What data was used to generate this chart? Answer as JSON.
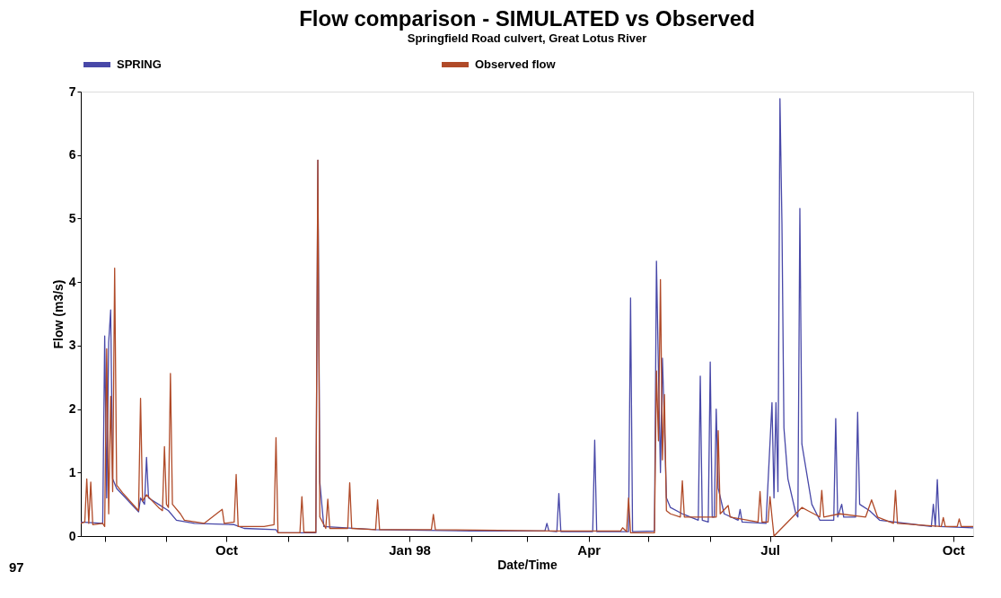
{
  "chart_data": {
    "type": "line",
    "title": "Flow comparison - SIMULATED vs Observed",
    "subtitle": "Springfield Road culvert, Great Lotus River",
    "xlabel": "Date/Time",
    "ylabel": "Flow (m3/s)",
    "legend": "top",
    "grid": false,
    "marker": "none",
    "line_style": "solid",
    "annotations": [
      "97"
    ],
    "xlim": [
      "1997-07-20",
      "1998-10-11"
    ],
    "xticks": [
      {
        "value": "1997-08-01",
        "label": null
      },
      {
        "value": "1997-09-01",
        "label": null
      },
      {
        "value": "1997-10-01",
        "label": "Oct"
      },
      {
        "value": "1997-11-01",
        "label": null
      },
      {
        "value": "1997-12-01",
        "label": null
      },
      {
        "value": "1998-01-01",
        "label": "Jan 98"
      },
      {
        "value": "1998-02-01",
        "label": null
      },
      {
        "value": "1998-03-01",
        "label": null
      },
      {
        "value": "1998-04-01",
        "label": "Apr"
      },
      {
        "value": "1998-05-01",
        "label": null
      },
      {
        "value": "1998-06-01",
        "label": null
      },
      {
        "value": "1998-07-01",
        "label": "Jul"
      },
      {
        "value": "1998-08-01",
        "label": null
      },
      {
        "value": "1998-09-01",
        "label": null
      },
      {
        "value": "1998-10-01",
        "label": "Oct"
      }
    ],
    "ylim": [
      0,
      7
    ],
    "yticks": [
      0,
      1,
      2,
      3,
      4,
      5,
      6,
      7
    ],
    "series": [
      {
        "name": "SPRING",
        "color": "#4848a8",
        "x": [
          "1997-07-20",
          "1997-07-31",
          "1997-08-01",
          "1997-08-02",
          "1997-08-03",
          "1997-08-04",
          "1997-08-05",
          "1997-08-07",
          "1997-08-10",
          "1997-08-18",
          "1997-08-19",
          "1997-08-21",
          "1997-08-22",
          "1997-08-23",
          "1997-08-28",
          "1997-09-02",
          "1997-09-06",
          "1997-09-15",
          "1997-10-05",
          "1997-10-10",
          "1997-10-26",
          "1997-10-27",
          "1997-11-15",
          "1997-11-16",
          "1997-11-17",
          "1997-11-19",
          "1997-12-15",
          "1998-02-01",
          "1998-03-10",
          "1998-03-11",
          "1998-03-12",
          "1998-03-16",
          "1998-03-17",
          "1998-03-18",
          "1998-04-03",
          "1998-04-04",
          "1998-04-05",
          "1998-04-21",
          "1998-04-22",
          "1998-04-23",
          "1998-05-04",
          "1998-05-05",
          "1998-05-06",
          "1998-05-07",
          "1998-05-08",
          "1998-05-09",
          "1998-05-10",
          "1998-05-12",
          "1998-05-18",
          "1998-05-26",
          "1998-05-27",
          "1998-05-28",
          "1998-05-31",
          "1998-06-01",
          "1998-06-02",
          "1998-06-03",
          "1998-06-04",
          "1998-06-05",
          "1998-06-08",
          "1998-06-15",
          "1998-06-16",
          "1998-06-17",
          "1998-06-29",
          "1998-07-02",
          "1998-07-03",
          "1998-07-04",
          "1998-07-05",
          "1998-07-06",
          "1998-07-07",
          "1998-07-08",
          "1998-07-10",
          "1998-07-14",
          "1998-07-15",
          "1998-07-16",
          "1998-07-17",
          "1998-07-22",
          "1998-07-26",
          "1998-08-02",
          "1998-08-03",
          "1998-08-04",
          "1998-08-06",
          "1998-08-07",
          "1998-08-13",
          "1998-08-14",
          "1998-08-15",
          "1998-08-20",
          "1998-08-25",
          "1998-09-20",
          "1998-09-21",
          "1998-09-22",
          "1998-09-23",
          "1998-09-24",
          "1998-10-11"
        ],
        "values": [
          0.22,
          0.2,
          3.15,
          0.6,
          3.05,
          3.56,
          0.9,
          0.75,
          0.65,
          0.38,
          0.6,
          0.5,
          1.24,
          0.6,
          0.5,
          0.4,
          0.25,
          0.2,
          0.18,
          0.12,
          0.1,
          0.05,
          0.05,
          5.92,
          0.85,
          0.15,
          0.1,
          0.08,
          0.08,
          0.2,
          0.08,
          0.07,
          0.67,
          0.07,
          0.07,
          1.51,
          0.07,
          0.07,
          3.75,
          0.07,
          0.08,
          4.33,
          2.6,
          1.0,
          2.8,
          1.75,
          0.6,
          0.45,
          0.35,
          0.25,
          2.52,
          0.25,
          0.22,
          2.74,
          0.3,
          0.3,
          2.0,
          0.75,
          0.35,
          0.25,
          0.42,
          0.22,
          0.2,
          2.1,
          0.6,
          2.1,
          0.7,
          6.89,
          4.92,
          1.7,
          0.9,
          0.35,
          0.3,
          5.16,
          1.45,
          0.5,
          0.25,
          0.25,
          1.85,
          0.3,
          0.5,
          0.3,
          0.3,
          1.95,
          0.5,
          0.4,
          0.25,
          0.15,
          0.5,
          0.15,
          0.89,
          0.15,
          0.13
        ]
      },
      {
        "name": "Observed flow",
        "color": "#b04a28",
        "x": [
          "1997-07-20",
          "1997-07-22",
          "1997-07-23",
          "1997-07-24",
          "1997-07-25",
          "1997-07-26",
          "1997-07-31",
          "1997-08-01",
          "1997-08-02",
          "1997-08-03",
          "1997-08-04",
          "1997-08-05",
          "1997-08-06",
          "1997-08-07",
          "1997-08-10",
          "1997-08-18",
          "1997-08-19",
          "1997-08-20",
          "1997-08-22",
          "1997-08-25",
          "1997-08-28",
          "1997-08-30",
          "1997-08-31",
          "1997-09-01",
          "1997-09-02",
          "1997-09-03",
          "1997-09-04",
          "1997-09-08",
          "1997-09-10",
          "1997-09-20",
          "1997-09-29",
          "1997-09-30",
          "1997-10-05",
          "1997-10-06",
          "1997-10-07",
          "1997-10-20",
          "1997-10-25",
          "1997-10-26",
          "1997-10-27",
          "1997-11-07",
          "1997-11-08",
          "1997-11-09",
          "1997-11-15",
          "1997-11-16",
          "1997-11-17",
          "1997-11-20",
          "1997-11-21",
          "1997-11-22",
          "1997-12-01",
          "1997-12-02",
          "1997-12-03",
          "1997-12-15",
          "1997-12-16",
          "1997-12-17",
          "1998-01-12",
          "1998-01-13",
          "1998-01-14",
          "1998-02-15",
          "1998-03-15",
          "1998-04-17",
          "1998-04-18",
          "1998-04-20",
          "1998-04-21",
          "1998-04-22",
          "1998-05-04",
          "1998-05-05",
          "1998-05-06",
          "1998-05-07",
          "1998-05-08",
          "1998-05-09",
          "1998-05-10",
          "1998-05-12",
          "1998-05-17",
          "1998-05-18",
          "1998-05-19",
          "1998-06-04",
          "1998-06-05",
          "1998-06-06",
          "1998-06-10",
          "1998-06-11",
          "1998-06-25",
          "1998-06-26",
          "1998-06-27",
          "1998-06-30",
          "1998-07-01",
          "1998-07-02",
          "1998-07-03",
          "1998-07-17",
          "1998-07-20",
          "1998-07-26",
          "1998-07-27",
          "1998-07-28",
          "1998-08-05",
          "1998-08-18",
          "1998-08-21",
          "1998-08-24",
          "1998-09-01",
          "1998-09-02",
          "1998-09-03",
          "1998-09-25",
          "1998-09-26",
          "1998-09-27",
          "1998-10-03",
          "1998-10-04",
          "1998-10-05",
          "1998-10-11"
        ],
        "values": [
          0.2,
          0.22,
          0.9,
          0.2,
          0.85,
          0.18,
          0.2,
          0.15,
          2.95,
          0.35,
          2.2,
          0.7,
          4.22,
          0.8,
          0.68,
          0.4,
          2.17,
          0.55,
          0.65,
          0.55,
          0.45,
          0.4,
          1.41,
          0.5,
          0.45,
          2.56,
          0.5,
          0.35,
          0.25,
          0.2,
          0.42,
          0.2,
          0.22,
          0.97,
          0.15,
          0.15,
          0.18,
          1.55,
          0.05,
          0.05,
          0.62,
          0.06,
          0.06,
          5.92,
          0.3,
          0.12,
          0.58,
          0.12,
          0.12,
          0.84,
          0.12,
          0.1,
          0.57,
          0.1,
          0.1,
          0.34,
          0.1,
          0.09,
          0.08,
          0.08,
          0.13,
          0.07,
          0.6,
          0.05,
          0.05,
          2.6,
          1.5,
          4.04,
          1.2,
          2.23,
          0.4,
          0.35,
          0.3,
          0.87,
          0.3,
          0.3,
          1.66,
          0.35,
          0.48,
          0.3,
          0.22,
          0.7,
          0.22,
          0.22,
          0.62,
          0.3,
          0,
          0.45,
          0.4,
          0.3,
          0.72,
          0.3,
          0.35,
          0.3,
          0.57,
          0.3,
          0.2,
          0.72,
          0.2,
          0.15,
          0.29,
          0.15,
          0.15,
          0.27,
          0.15,
          0.15
        ]
      }
    ]
  }
}
